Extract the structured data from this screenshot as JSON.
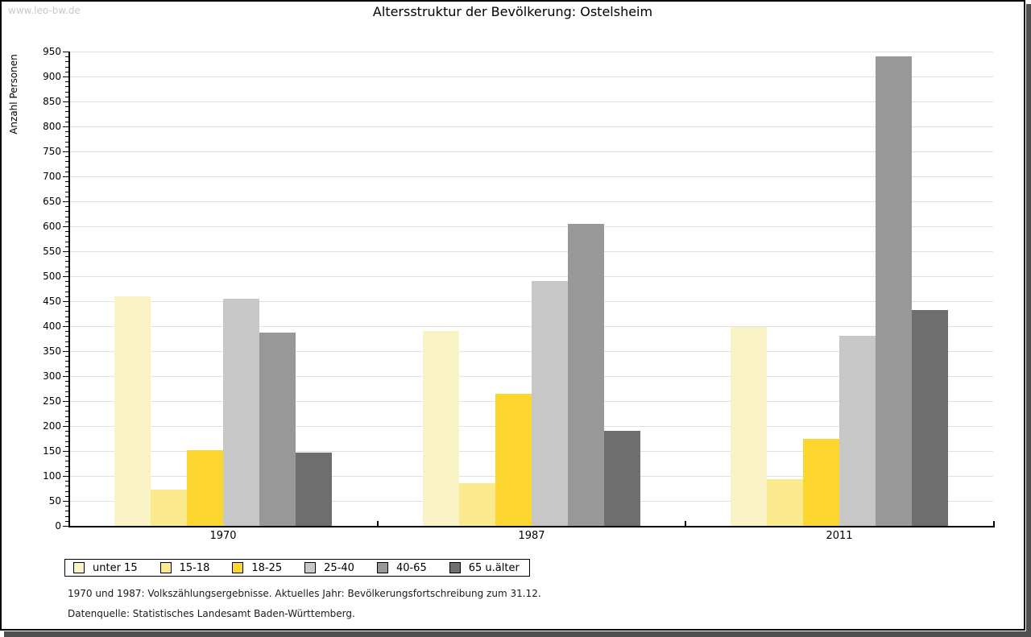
{
  "page": {
    "watermark": "www.leo-bw.de",
    "title": "Altersstruktur der Bevölkerung: Ostelsheim",
    "footnote_line1": "1970 und 1987: Volkszählungsergebnisse. Aktuelles Jahr: Bevölkerungsfortschreibung zum 31.12.",
    "footnote_line2": "Datenquelle: Statistisches Landesamt Baden-Württemberg."
  },
  "chart_data": {
    "type": "bar",
    "title": "Altersstruktur der Bevölkerung: Ostelsheim",
    "ylabel": "Anzahl Personen",
    "xlabel": "",
    "categories": [
      "1970",
      "1987",
      "2011"
    ],
    "series": [
      {
        "name": "unter 15",
        "color": "#faf3c6",
        "values": [
          459,
          391,
          399
        ]
      },
      {
        "name": "15-18",
        "color": "#fbe98e",
        "values": [
          73,
          85,
          93
        ]
      },
      {
        "name": "18-25",
        "color": "#fcd62f",
        "values": [
          152,
          265,
          174
        ]
      },
      {
        "name": "25-40",
        "color": "#c7c7c7",
        "values": [
          455,
          490,
          381
        ]
      },
      {
        "name": "40-65",
        "color": "#989898",
        "values": [
          387,
          605,
          940
        ]
      },
      {
        "name": "65 u.älter",
        "color": "#6e6e6e",
        "values": [
          146,
          190,
          433
        ]
      }
    ],
    "ylim": [
      0,
      950
    ],
    "ytick_step": 50,
    "minor_tick_step": 10,
    "grid": "horizontal",
    "legend_position": "bottom-left"
  }
}
